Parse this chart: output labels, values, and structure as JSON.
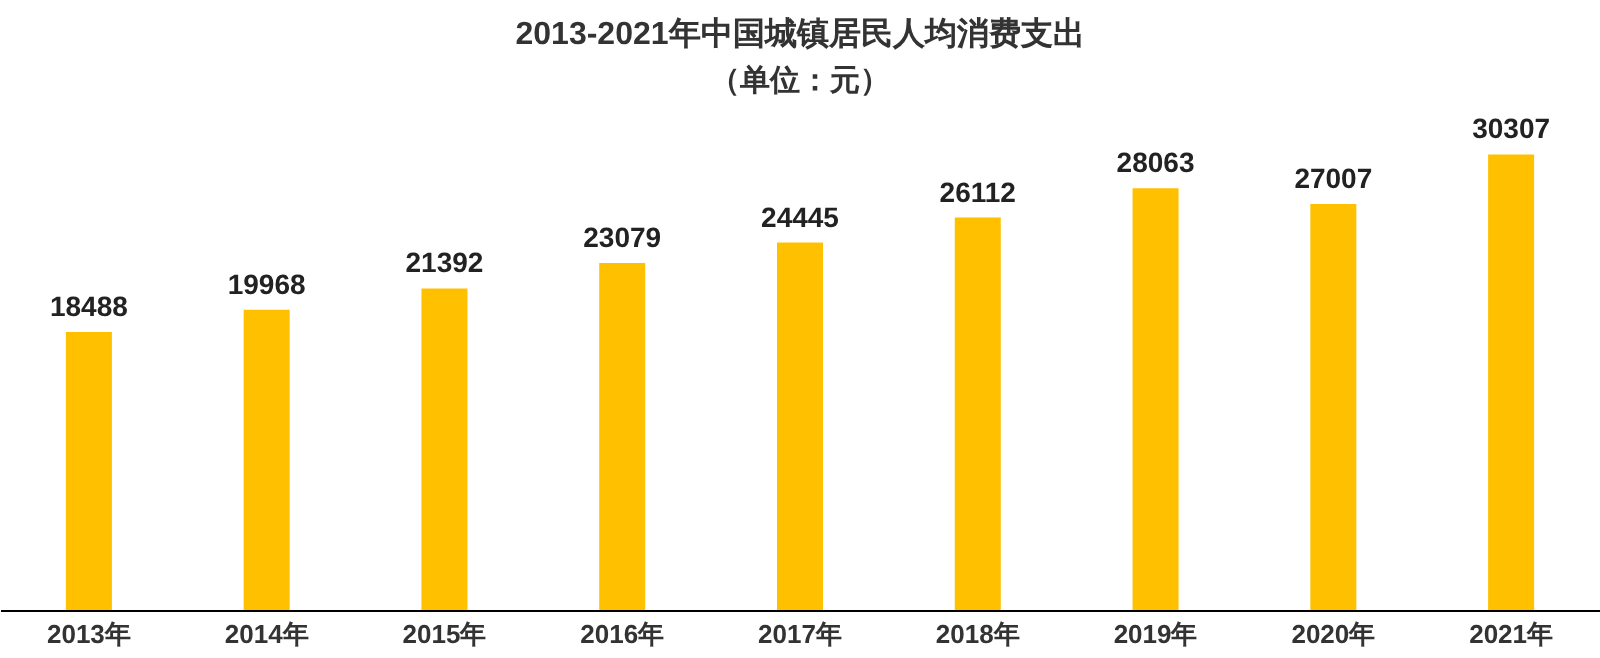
{
  "chart_data": {
    "type": "bar",
    "title": "2013-2021年中国城镇居民人均消费支出",
    "subtitle": "（单位：元）",
    "categories": [
      "2013年",
      "2014年",
      "2015年",
      "2016年",
      "2017年",
      "2018年",
      "2019年",
      "2020年",
      "2021年"
    ],
    "values": [
      18488,
      19968,
      21392,
      23079,
      24445,
      26112,
      28063,
      27007,
      30307
    ],
    "color": "#ffc000",
    "data_labels": true,
    "tick_labels": "x"
  }
}
